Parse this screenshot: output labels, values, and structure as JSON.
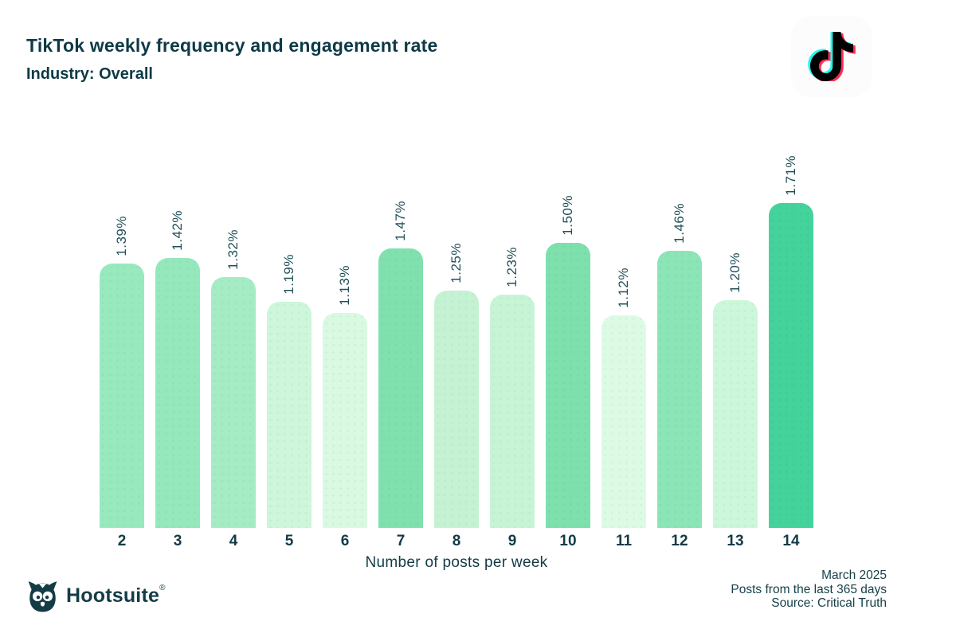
{
  "header": {
    "title": "TikTok weekly frequency and engagement rate",
    "subtitle": "Industry: Overall"
  },
  "chart_data": {
    "type": "bar",
    "title": "TikTok weekly frequency and engagement rate",
    "subtitle": "Industry: Overall",
    "categories": [
      "2",
      "3",
      "4",
      "5",
      "6",
      "7",
      "8",
      "9",
      "10",
      "11",
      "12",
      "13",
      "14"
    ],
    "values": [
      1.39,
      1.42,
      1.32,
      1.19,
      1.13,
      1.47,
      1.25,
      1.23,
      1.5,
      1.12,
      1.46,
      1.2,
      1.71
    ],
    "value_labels": [
      "1.39%",
      "1.42%",
      "1.32%",
      "1.19%",
      "1.13%",
      "1.47%",
      "1.25%",
      "1.23%",
      "1.50%",
      "1.12%",
      "1.46%",
      "1.20%",
      "1.71%"
    ],
    "bar_colors": [
      "#99e9be",
      "#95e8bc",
      "#a5ecc5",
      "#cdf6da",
      "#d9f9e1",
      "#80e1ae",
      "#c5f2d2",
      "#c8f4d6",
      "#7ee0ad",
      "#ddfbe4",
      "#8ce5b6",
      "#ccf7da",
      "#43d39b"
    ],
    "xlabel": "Number of posts per week",
    "ylabel": "",
    "ylim": [
      0,
      1.8
    ],
    "grid": false,
    "legend": "none",
    "value_label_rotation": -90,
    "bar_corner": "rounded-top"
  },
  "footer": {
    "brand": "Hootsuite",
    "registered_mark": "®",
    "notes": [
      "March 2025",
      "Posts from the last 365 days",
      "Source: Critical Truth"
    ]
  },
  "colors": {
    "title_text": "#0e3a46",
    "axis_text": "#123b46",
    "bar_label_text": "#21505a",
    "brand_text": "#143c46",
    "bar_min": "#ddfbe4",
    "bar_max": "#43d39b",
    "tiktok_cyan": "#25f4ee",
    "tiktok_red": "#fe2c55",
    "tiktok_black": "#010101"
  }
}
